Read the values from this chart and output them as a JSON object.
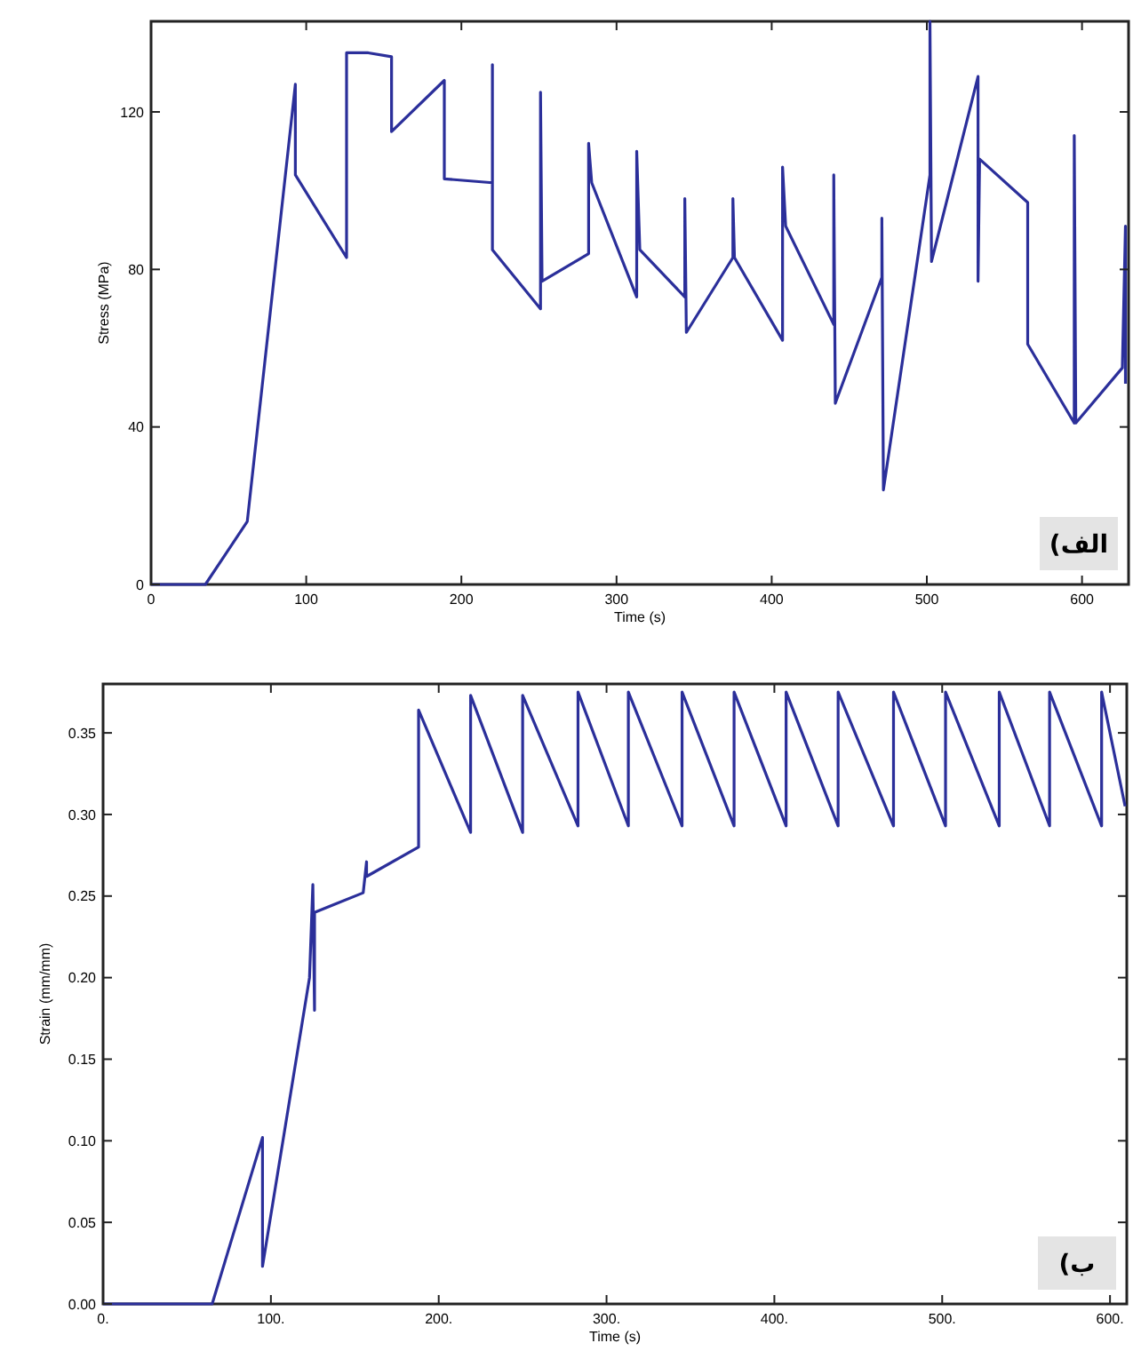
{
  "chart_data": [
    {
      "type": "line",
      "xlabel": "Time (s)",
      "ylabel": "Stress (MPa)",
      "xlim": [
        0,
        630
      ],
      "ylim": [
        0,
        143
      ],
      "xticks": [
        0,
        100,
        200,
        300,
        400,
        500,
        600
      ],
      "yticks": [
        0,
        40,
        80,
        120
      ],
      "grid": false,
      "marker": "none",
      "line_style": "solid",
      "annotations": [
        "الف)"
      ],
      "series": [
        {
          "color": "#2b2f9a",
          "x": [
            0,
            35,
            62,
            93,
            93,
            126,
            126,
            140,
            155,
            155,
            189,
            189,
            220,
            220,
            220,
            251,
            251,
            252,
            282,
            282,
            284,
            313,
            313,
            315,
            344,
            344,
            345,
            375,
            375,
            376,
            407,
            407,
            409,
            440,
            440,
            441,
            471,
            471,
            472,
            502,
            502,
            503,
            533,
            533,
            534,
            565,
            565,
            595,
            595,
            596,
            626,
            628,
            628
          ],
          "values": [
            0,
            0,
            16,
            127,
            104,
            83,
            135,
            135,
            134,
            115,
            128,
            103,
            102,
            132,
            85,
            70,
            125,
            77,
            84,
            112,
            102,
            73,
            110,
            85,
            73,
            98,
            64,
            83,
            98,
            83,
            62,
            106,
            91,
            66,
            104,
            46,
            78,
            93,
            24,
            104,
            143,
            82,
            129,
            77,
            108,
            97,
            61,
            41,
            114,
            41,
            55,
            91,
            51
          ]
        }
      ]
    },
    {
      "type": "line",
      "xlabel": "Time (s)",
      "ylabel": "Strain (mm/mm)",
      "xlim": [
        0,
        610
      ],
      "ylim": [
        0,
        0.38
      ],
      "xticks": [
        {
          "value": 0,
          "label": "0."
        },
        {
          "value": 100,
          "label": "100."
        },
        {
          "value": 200,
          "label": "200."
        },
        {
          "value": 300,
          "label": "300."
        },
        {
          "value": 400,
          "label": "400."
        },
        {
          "value": 500,
          "label": "500."
        },
        {
          "value": 600,
          "label": "600."
        }
      ],
      "yticks": [
        {
          "value": 0,
          "label": "0.00"
        },
        {
          "value": 0.05,
          "label": "0.05"
        },
        {
          "value": 0.1,
          "label": "0.10"
        },
        {
          "value": 0.15,
          "label": "0.15"
        },
        {
          "value": 0.2,
          "label": "0.20"
        },
        {
          "value": 0.25,
          "label": "0.25"
        },
        {
          "value": 0.3,
          "label": "0.30"
        },
        {
          "value": 0.35,
          "label": "0.35"
        }
      ],
      "grid": false,
      "marker": "none",
      "line_style": "solid",
      "annotations": [
        "ب)"
      ],
      "series": [
        {
          "color": "#2b2f9a",
          "x": [
            0,
            65,
            95,
            95,
            123,
            125,
            126,
            126,
            155,
            157,
            157,
            188,
            188,
            219,
            219,
            250,
            250,
            283,
            283,
            313,
            313,
            345,
            345,
            376,
            376,
            407,
            407,
            438,
            438,
            471,
            471,
            502,
            502,
            534,
            534,
            564,
            564,
            595,
            595,
            609
          ],
          "values": [
            0,
            0,
            0.102,
            0.023,
            0.2,
            0.257,
            0.18,
            0.24,
            0.252,
            0.271,
            0.262,
            0.28,
            0.364,
            0.289,
            0.373,
            0.289,
            0.373,
            0.293,
            0.375,
            0.293,
            0.375,
            0.293,
            0.375,
            0.293,
            0.375,
            0.293,
            0.375,
            0.293,
            0.375,
            0.293,
            0.375,
            0.293,
            0.375,
            0.293,
            0.375,
            0.293,
            0.375,
            0.293,
            0.375,
            0.305
          ]
        }
      ]
    }
  ]
}
